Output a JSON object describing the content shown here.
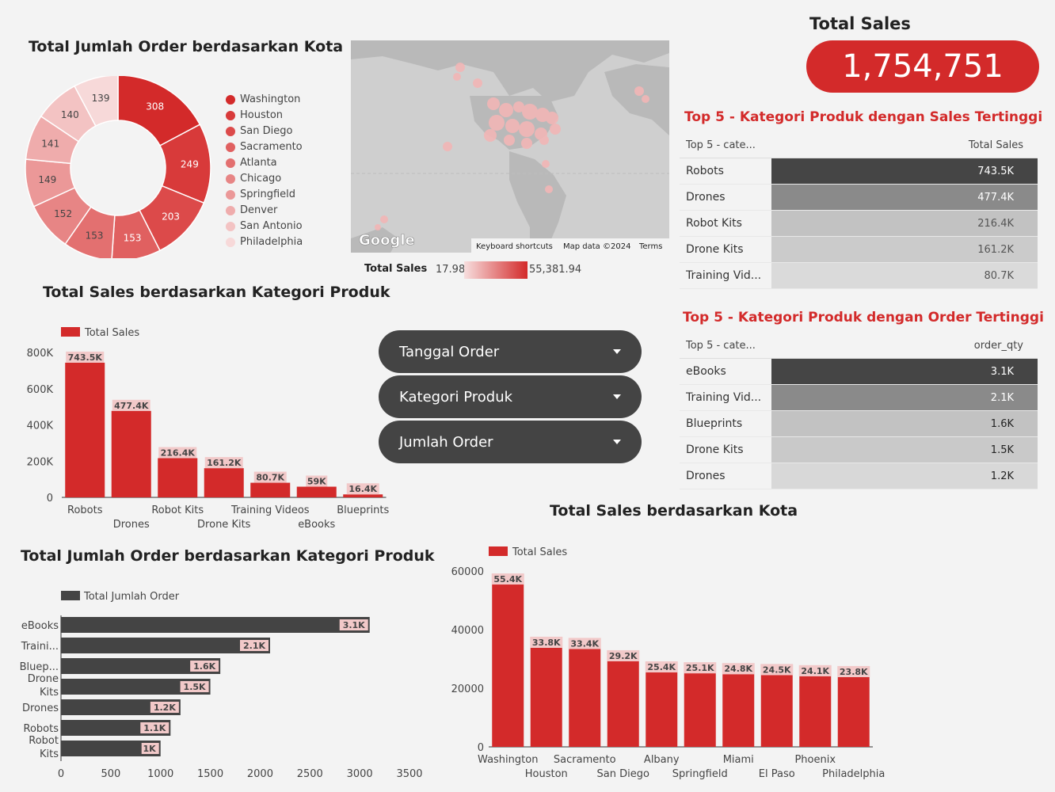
{
  "titles": {
    "donut": "Total Jumlah Order berdasarkan Kota",
    "total_sales": "Total Sales",
    "sales_by_category": "Total Sales berdasarkan Kategori Produk",
    "orders_by_category": "Total Jumlah Order berdasarkan Kategori Produk",
    "sales_by_city": "Total Sales berdasarkan Kota",
    "top5_sales": "Top 5 - Kategori Produk dengan Sales Tertinggi",
    "top5_orders": "Top 5 - Kategori Produk dengan Order Tertinggi"
  },
  "total_sales_value": "1,754,751",
  "map": {
    "google_label": "Google",
    "attribution": [
      "Keyboard shortcuts",
      "Map data ©2024",
      "Terms"
    ],
    "legend_label": "Total Sales",
    "legend_min": "17.98",
    "legend_max": "55,381.94"
  },
  "filters": [
    {
      "label": "Tanggal Order"
    },
    {
      "label": "Kategori Produk"
    },
    {
      "label": "Jumlah Order"
    }
  ],
  "top5_sales_table": {
    "col1": "Top 5 - cate...",
    "col2": "Total Sales",
    "rows": [
      {
        "label": "Robots",
        "value": "743.5K",
        "bg": "#454545",
        "fg": "#ffffff"
      },
      {
        "label": "Drones",
        "value": "477.4K",
        "bg": "#8a8a8a",
        "fg": "#ffffff"
      },
      {
        "label": "Robot Kits",
        "value": "216.4K",
        "bg": "#c2c2c2",
        "fg": "#555555"
      },
      {
        "label": "Drone Kits",
        "value": "161.2K",
        "bg": "#cbcbcb",
        "fg": "#555555"
      },
      {
        "label": "Training Vid...",
        "value": "80.7K",
        "bg": "#dadada",
        "fg": "#555555"
      }
    ]
  },
  "top5_orders_table": {
    "col1": "Top 5 - cate...",
    "col2": "order_qty",
    "rows": [
      {
        "label": "eBooks",
        "value": "3.1K",
        "bg": "#454545",
        "fg": "#ffffff"
      },
      {
        "label": "Training Vid...",
        "value": "2.1K",
        "bg": "#8a8a8a",
        "fg": "#ffffff"
      },
      {
        "label": "Blueprints",
        "value": "1.6K",
        "bg": "#c2c2c2",
        "fg": "#222222"
      },
      {
        "label": "Drone Kits",
        "value": "1.5K",
        "bg": "#c9c9c9",
        "fg": "#222222"
      },
      {
        "label": "Drones",
        "value": "1.2K",
        "bg": "#d8d8d8",
        "fg": "#222222"
      }
    ]
  },
  "colors": {
    "red": "#d32a2a",
    "dark": "#444444",
    "label_bg": "#f2c9c9"
  },
  "chart_data": [
    {
      "id": "donut",
      "type": "pie",
      "title": "Total Jumlah Order berdasarkan Kota",
      "categories": [
        "Washington",
        "Houston",
        "San Diego",
        "Sacramento",
        "Atlanta",
        "Chicago",
        "Springfield",
        "Denver",
        "San Antonio",
        "Philadelphia"
      ],
      "values": [
        308,
        249,
        203,
        153,
        153,
        152,
        149,
        141,
        140,
        139
      ],
      "colors": [
        "#d32a2a",
        "#d83a3a",
        "#dc4a4a",
        "#e06060",
        "#e37070",
        "#e78585",
        "#eb9898",
        "#efacac",
        "#f3c3c3",
        "#f7d9d9"
      ],
      "legend_position": "right"
    },
    {
      "id": "sales_by_category",
      "type": "bar",
      "title": "Total Sales berdasarkan Kategori Produk",
      "series_name": "Total Sales",
      "categories": [
        "Robots",
        "Drones",
        "Robot Kits",
        "Drone Kits",
        "Training Videos",
        "eBooks",
        "Blueprints"
      ],
      "values": [
        743500,
        477400,
        216400,
        161200,
        80700,
        59000,
        16400
      ],
      "labels": [
        "743.5K",
        "477.4K",
        "216.4K",
        "161.2K",
        "80.7K",
        "59K",
        "16.4K"
      ],
      "yticks": [
        "0",
        "200K",
        "400K",
        "600K",
        "800K"
      ],
      "ylim": [
        0,
        800000
      ]
    },
    {
      "id": "orders_by_category",
      "type": "bar",
      "orientation": "horizontal",
      "title": "Total Jumlah Order berdasarkan Kategori Produk",
      "series_name": "Total Jumlah Order",
      "categories": [
        "eBooks",
        "Traini...",
        "Bluep...",
        "Drone Kits",
        "Drones",
        "Robots",
        "Robot Kits"
      ],
      "values": [
        3100,
        2100,
        1600,
        1500,
        1200,
        1100,
        1000
      ],
      "labels": [
        "3.1K",
        "2.1K",
        "1.6K",
        "1.5K",
        "1.2K",
        "1.1K",
        "1K"
      ],
      "xticks": [
        "0",
        "500",
        "1000",
        "1500",
        "2000",
        "2500",
        "3000",
        "3500"
      ],
      "xlim": [
        0,
        3500
      ]
    },
    {
      "id": "sales_by_city",
      "type": "bar",
      "title": "Total Sales berdasarkan Kota",
      "series_name": "Total Sales",
      "categories": [
        "Washington",
        "Houston",
        "Sacramento",
        "San Diego",
        "Albany",
        "Springfield",
        "Miami",
        "El Paso",
        "Phoenix",
        "Philadelphia"
      ],
      "values": [
        55400,
        33800,
        33400,
        29200,
        25400,
        25100,
        24800,
        24500,
        24100,
        23800
      ],
      "labels": [
        "55.4K",
        "33.8K",
        "33.4K",
        "29.2K",
        "25.4K",
        "25.1K",
        "24.8K",
        "24.5K",
        "24.1K",
        "23.8K"
      ],
      "yticks": [
        "0",
        "20000",
        "40000",
        "60000"
      ],
      "ylim": [
        0,
        60000
      ]
    }
  ]
}
